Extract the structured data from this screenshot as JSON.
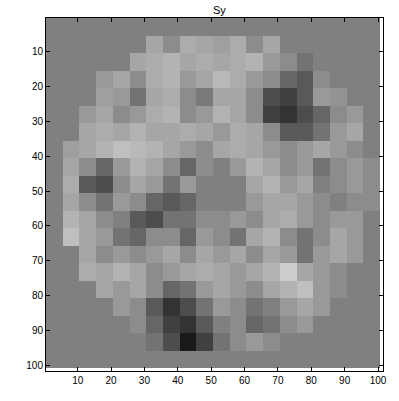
{
  "chart_data": {
    "type": "heatmap",
    "title": "Sy",
    "x": [
      3,
      8,
      13,
      18,
      23,
      28,
      33,
      38,
      43,
      48,
      53,
      58,
      63,
      68,
      73,
      78,
      83,
      88,
      93,
      98
    ],
    "y": [
      3,
      8,
      13,
      18,
      23,
      28,
      33,
      38,
      43,
      48,
      53,
      58,
      63,
      68,
      73,
      78,
      83,
      88,
      93,
      98
    ],
    "xlim": [
      0.5,
      101.5
    ],
    "ylim": [
      101.5,
      0.5
    ],
    "xticks": [
      10,
      20,
      30,
      40,
      50,
      60,
      70,
      80,
      90,
      100
    ],
    "yticks": [
      10,
      20,
      30,
      40,
      50,
      60,
      70,
      80,
      90,
      100
    ],
    "zlim": [
      -1,
      1
    ],
    "cells": [
      [
        0,
        0,
        0,
        0,
        0,
        0,
        0,
        0,
        0,
        0,
        0,
        0,
        0,
        0,
        0,
        0,
        0,
        0,
        0,
        0
      ],
      [
        0,
        0,
        0,
        0,
        0,
        0,
        0.3,
        0.1,
        0.35,
        0.3,
        0.25,
        0.35,
        0.1,
        0.3,
        0,
        0,
        0,
        0,
        0,
        0
      ],
      [
        0,
        0,
        0,
        0,
        0,
        0.3,
        0.35,
        0.4,
        0.3,
        0.35,
        0.3,
        0.35,
        0.4,
        0.2,
        0.1,
        -0.1,
        0,
        0,
        0,
        0
      ],
      [
        0,
        0,
        0,
        0.2,
        0.3,
        0.1,
        0.35,
        0.4,
        0.2,
        0.3,
        0.45,
        0.35,
        0.2,
        0.1,
        -0.2,
        -0.3,
        0.1,
        0,
        0,
        0
      ],
      [
        0,
        0,
        0,
        0.25,
        0.2,
        -0.1,
        0.3,
        0.35,
        0.1,
        -0.05,
        0.3,
        0.3,
        0.1,
        -0.4,
        -0.5,
        -0.3,
        0.2,
        0.15,
        0,
        0
      ],
      [
        0,
        0,
        0.2,
        0.3,
        0.1,
        0.2,
        0.35,
        0.4,
        0.1,
        0.2,
        0.4,
        0.3,
        0.1,
        -0.5,
        -0.6,
        -0.4,
        -0.2,
        0.1,
        0.2,
        0
      ],
      [
        0,
        0,
        0.3,
        0.35,
        0.3,
        0.4,
        0.3,
        0.3,
        0.35,
        0.3,
        0.2,
        0.35,
        0.3,
        0.1,
        -0.3,
        -0.3,
        -0.1,
        0.2,
        0.3,
        0
      ],
      [
        0,
        0.25,
        0.3,
        0.4,
        0.5,
        0.45,
        0.4,
        0.3,
        0.2,
        0.1,
        0.3,
        0.35,
        0.3,
        0.2,
        0.1,
        0.2,
        0.3,
        0.2,
        0.1,
        0
      ],
      [
        0,
        0.3,
        0.1,
        -0.2,
        0.2,
        0.4,
        0.3,
        0.1,
        -0.2,
        0.1,
        0,
        0.2,
        0.4,
        0.3,
        0.1,
        0.2,
        -0.1,
        0.1,
        0.2,
        0.1
      ],
      [
        0,
        0.35,
        -0.3,
        -0.4,
        0.1,
        0.3,
        0.2,
        -0.1,
        0.2,
        0,
        0,
        0,
        0.3,
        0.4,
        0.2,
        0.3,
        0,
        0.1,
        0.2,
        0.1
      ],
      [
        0,
        0.3,
        0.1,
        -0.1,
        0.2,
        0.1,
        -0.2,
        -0.3,
        -0.2,
        0,
        0,
        0,
        0.2,
        0.3,
        0.3,
        0.2,
        0.1,
        0,
        0.1,
        0.1
      ],
      [
        0,
        0.4,
        0.3,
        0.1,
        0,
        -0.3,
        -0.4,
        -0.1,
        -0.1,
        0.1,
        0.1,
        0.2,
        0.1,
        0.3,
        0.35,
        0.2,
        0.1,
        0.2,
        0.2,
        0
      ],
      [
        0,
        0.5,
        0.3,
        0.2,
        -0.1,
        -0.2,
        0.1,
        0.1,
        -0.2,
        0.2,
        0.1,
        -0.1,
        0.3,
        0.4,
        0.1,
        -0.1,
        0.1,
        0.3,
        0.2,
        0
      ],
      [
        0,
        0,
        0.3,
        0.1,
        0.2,
        0.1,
        0.2,
        0.3,
        0.1,
        0.3,
        0.2,
        0.3,
        0.1,
        0.3,
        0.2,
        -0.1,
        0.2,
        0.3,
        0.2,
        0
      ],
      [
        0,
        0,
        0.35,
        0.3,
        0.4,
        0.3,
        0.1,
        0.2,
        0.3,
        0.35,
        0.3,
        0.2,
        0.3,
        0.4,
        0.6,
        0.3,
        0.2,
        0.1,
        0,
        0
      ],
      [
        0,
        0,
        0,
        0.3,
        0.2,
        0.3,
        0.1,
        -0.2,
        -0.1,
        0.2,
        0.3,
        0.2,
        0.1,
        0.3,
        0.4,
        0.5,
        0.2,
        0.1,
        0,
        0
      ],
      [
        0,
        0,
        0,
        0,
        0.2,
        0.1,
        -0.3,
        -0.6,
        -0.4,
        -0.1,
        0.2,
        0.1,
        -0.1,
        0,
        0.2,
        0.3,
        0.2,
        0,
        0,
        0
      ],
      [
        0,
        0,
        0,
        0,
        0,
        0.1,
        -0.2,
        -0.5,
        -0.6,
        -0.3,
        0,
        0.1,
        -0.2,
        -0.1,
        0.1,
        0.2,
        0,
        0,
        0,
        0
      ],
      [
        0,
        0,
        0,
        0,
        0,
        0,
        -0.1,
        -0.4,
        -0.8,
        -0.5,
        -0.1,
        0.1,
        0.2,
        0.1,
        0,
        0,
        0,
        0,
        0,
        0
      ],
      [
        0,
        0,
        0,
        0,
        0,
        0,
        0,
        0,
        0,
        0,
        0,
        0,
        0,
        0,
        0,
        0,
        0,
        0,
        0,
        0
      ]
    ]
  }
}
